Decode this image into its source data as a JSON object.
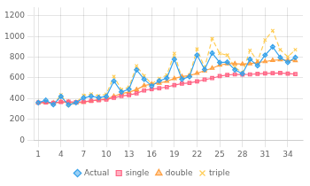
{
  "chart_data": {
    "type": "line",
    "x": [
      1,
      2,
      3,
      4,
      5,
      6,
      7,
      8,
      9,
      10,
      11,
      12,
      13,
      14,
      15,
      16,
      17,
      18,
      19,
      20,
      21,
      22,
      23,
      24,
      25,
      26,
      27,
      28,
      29,
      30,
      31,
      32,
      33,
      34,
      35
    ],
    "series": [
      {
        "name": "Actual",
        "marker": "diamond",
        "line_style": "solid",
        "values": [
          362,
          385,
          342,
          422,
          340,
          362,
          408,
          423,
          410,
          421,
          570,
          465,
          490,
          678,
          588,
          522,
          572,
          598,
          780,
          588,
          612,
          820,
          682,
          840,
          749,
          752,
          678,
          641,
          780,
          718,
          820,
          900,
          798,
          750,
          798
        ]
      },
      {
        "name": "single",
        "marker": "square",
        "line_style": "solid",
        "values": [
          362,
          363,
          360,
          368,
          370,
          366,
          370,
          378,
          386,
          392,
          408,
          425,
          434,
          452,
          480,
          492,
          500,
          512,
          530,
          546,
          552,
          567,
          583,
          598,
          617,
          629,
          634,
          633,
          634,
          639,
          643,
          646,
          648,
          642,
          637
        ]
      },
      {
        "name": "double",
        "marker": "triangle",
        "line_style": "solid",
        "values": [
          362,
          364,
          358,
          368,
          367,
          360,
          365,
          378,
          390,
          399,
          423,
          450,
          462,
          488,
          526,
          540,
          550,
          568,
          594,
          614,
          622,
          645,
          670,
          694,
          724,
          737,
          738,
          733,
          737,
          748,
          758,
          770,
          775,
          770,
          768
        ]
      },
      {
        "name": "triple",
        "marker": "x",
        "line_style": "dashed",
        "values": [
          362,
          368,
          346,
          436,
          338,
          362,
          432,
          445,
          428,
          443,
          614,
          488,
          510,
          716,
          620,
          542,
          594,
          628,
          836,
          596,
          624,
          878,
          700,
          978,
          836,
          820,
          704,
          650,
          866,
          762,
          966,
          1056,
          872,
          804,
          872
        ]
      }
    ],
    "xlim": [
      0.5,
      36
    ],
    "xticks": [
      1,
      4,
      7,
      10,
      13,
      16,
      19,
      22,
      25,
      28,
      31,
      34
    ],
    "ylim": [
      0,
      1280
    ],
    "yticks": [
      0,
      200,
      400,
      600,
      800,
      1000,
      1200
    ],
    "grid": true,
    "legend": "bottom"
  }
}
